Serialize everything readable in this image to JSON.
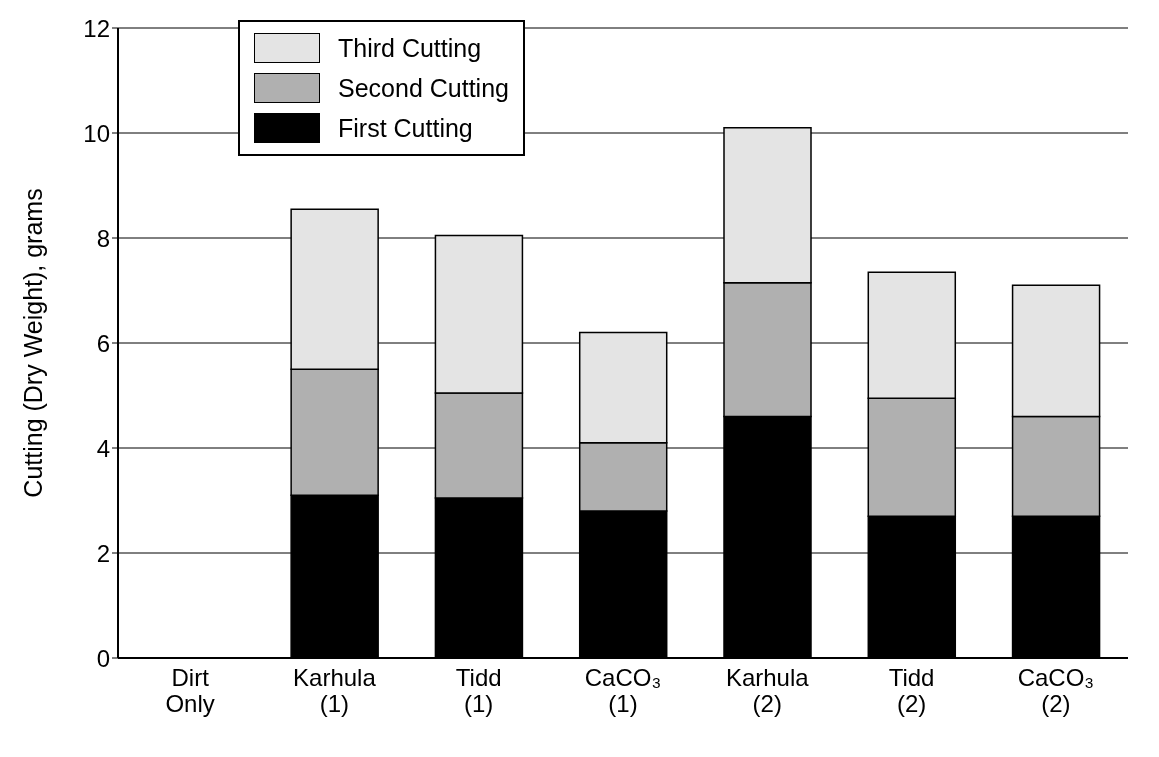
{
  "chart_data": {
    "type": "bar",
    "stacked": true,
    "ylabel": "Cutting (Dry Weight), grams",
    "categories": [
      "Dirt Only",
      "Karhula (1)",
      "Tidd (1)",
      "CaCO₃ (1)",
      "Karhula (2)",
      "Tidd (2)",
      "CaCO₃ (2)"
    ],
    "series": [
      {
        "name": "First Cutting",
        "color": "#000000",
        "values": [
          0,
          3.1,
          3.05,
          2.8,
          4.6,
          2.7,
          2.7
        ]
      },
      {
        "name": "Second Cutting",
        "color": "#b0b0b0",
        "values": [
          0,
          2.4,
          2.0,
          1.3,
          2.55,
          2.25,
          1.9
        ]
      },
      {
        "name": "Third Cutting",
        "color": "#e4e4e4",
        "values": [
          0,
          3.05,
          3.0,
          2.1,
          2.95,
          2.4,
          2.5
        ]
      }
    ],
    "ylim": [
      0,
      12
    ],
    "yticks": [
      0,
      2,
      4,
      6,
      8,
      10,
      12
    ],
    "grid": "y",
    "legend": "top left"
  }
}
